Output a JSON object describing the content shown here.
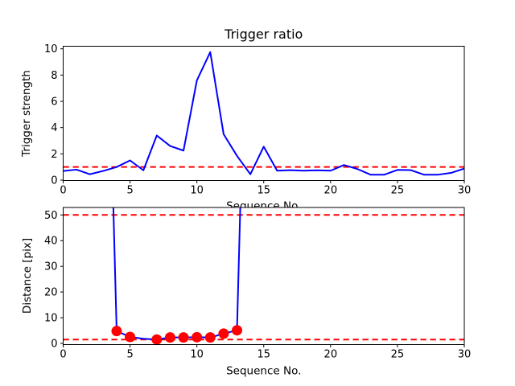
{
  "figure": {
    "background": "#ffffff",
    "line_color": "#0000ff",
    "threshold_color": "#ff0000",
    "marker_color": "#ff0000"
  },
  "chart_data": [
    {
      "type": "line",
      "title": "Trigger ratio",
      "xlabel": "Sequence No.",
      "ylabel": "Trigger strength",
      "xlim": [
        0,
        30
      ],
      "ylim": [
        0,
        10.2
      ],
      "xticks": [
        0,
        5,
        10,
        15,
        20,
        25,
        30
      ],
      "yticks": [
        0,
        2,
        4,
        6,
        8,
        10
      ],
      "grid": false,
      "legend": null,
      "x": [
        0,
        1,
        2,
        3,
        4,
        5,
        6,
        7,
        8,
        9,
        10,
        11,
        12,
        13,
        14,
        15,
        16,
        17,
        18,
        19,
        20,
        21,
        22,
        23,
        24,
        25,
        26,
        27,
        28,
        29,
        30
      ],
      "series": [
        {
          "name": "trigger strength",
          "color": "#0000ff",
          "values": [
            0.7,
            0.8,
            0.45,
            0.7,
            1.0,
            1.5,
            0.75,
            3.4,
            2.6,
            2.25,
            7.6,
            9.75,
            3.5,
            1.85,
            0.45,
            2.55,
            0.72,
            0.76,
            0.72,
            0.75,
            0.72,
            1.15,
            0.85,
            0.41,
            0.41,
            0.78,
            0.76,
            0.41,
            0.41,
            0.55,
            0.88
          ]
        }
      ],
      "thresholds": [
        {
          "value": 1.0,
          "color": "#ff0000",
          "style": "dashed"
        }
      ]
    },
    {
      "type": "line",
      "title": "",
      "xlabel": "Sequence No.",
      "ylabel": "Distance [pix]",
      "xlim": [
        0,
        30
      ],
      "ylim": [
        0,
        52.9
      ],
      "xticks": [
        0,
        5,
        10,
        15,
        20,
        25,
        30
      ],
      "yticks": [
        0,
        10,
        20,
        30,
        40,
        50
      ],
      "grid": false,
      "legend": null,
      "x": [
        3,
        4,
        5,
        6,
        7,
        8,
        9,
        10,
        11,
        12,
        13,
        14
      ],
      "series": [
        {
          "name": "distance",
          "color": "#0000ff",
          "values": [
            null,
            4.8,
            2.5,
            1.8,
            1.5,
            2.3,
            2.3,
            2.4,
            2.3,
            3.8,
            5.1,
            null
          ]
        }
      ],
      "markers": {
        "shape": "circle",
        "color": "#ff0000",
        "x": [
          4,
          5,
          7,
          8,
          9,
          10,
          11,
          12,
          13
        ],
        "values": [
          4.8,
          2.5,
          1.5,
          2.3,
          2.3,
          2.4,
          2.3,
          3.8,
          5.1
        ]
      },
      "thresholds": [
        {
          "value": 50,
          "color": "#ff0000",
          "style": "dashed"
        },
        {
          "value": 1.5,
          "color": "#ff0000",
          "style": "dashed"
        }
      ]
    }
  ]
}
